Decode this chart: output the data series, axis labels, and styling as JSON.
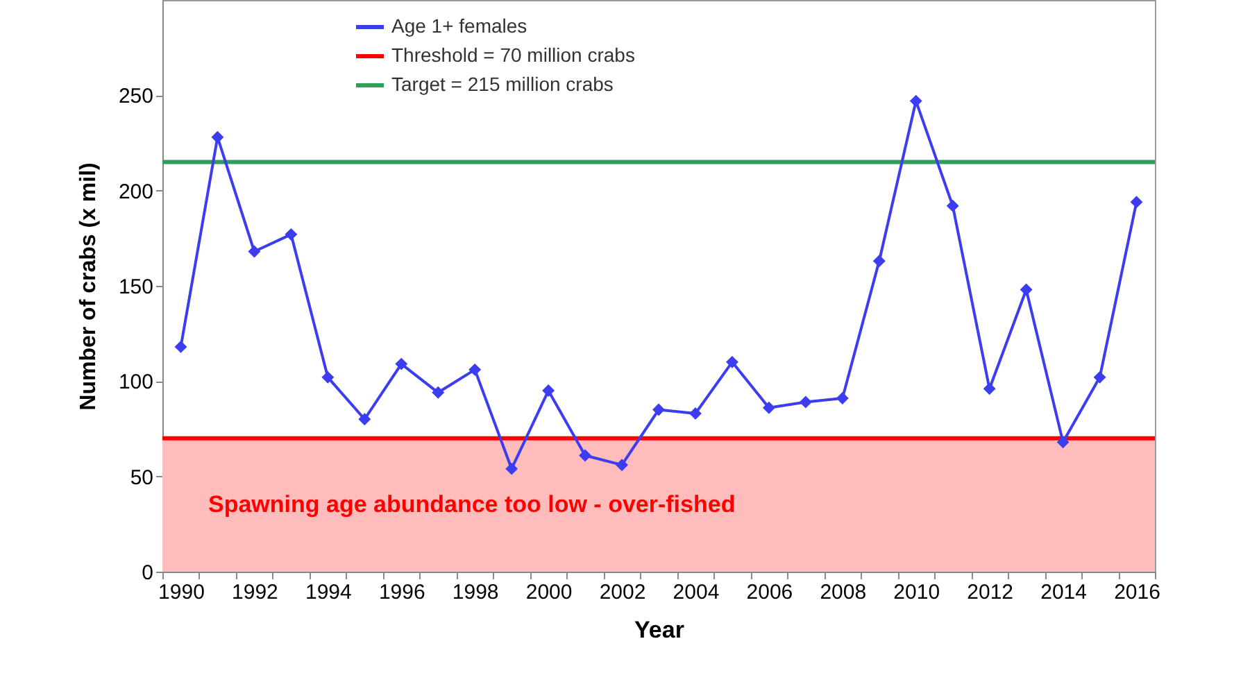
{
  "chart_data": {
    "type": "line",
    "xlabel": "Year",
    "ylabel": "Number of crabs (x mil)",
    "categories": [
      "1990",
      null,
      "1992",
      null,
      "1994",
      null,
      "1996",
      null,
      "1998",
      null,
      "2000",
      null,
      "2002",
      null,
      "2004",
      null,
      "2006",
      null,
      "2008",
      null,
      "2010",
      null,
      "2012",
      null,
      "2014",
      null,
      "2016"
    ],
    "series": [
      {
        "name": "Age 1+ females",
        "color": "#3c3cf0",
        "values": [
          118,
          228,
          168,
          177,
          102,
          80,
          109,
          94,
          106,
          54,
          95,
          61,
          56,
          85,
          83,
          110,
          86,
          89,
          91,
          163,
          247,
          192,
          96,
          148,
          68,
          102,
          194
        ]
      }
    ],
    "marker": "diamond",
    "ylim": [
      0,
      300
    ],
    "yticks": [
      0,
      50,
      100,
      150,
      200,
      250
    ],
    "grid": false,
    "legend": "top",
    "ref_lines": [
      {
        "axis": "y",
        "value": 70,
        "label": "Threshold = 70 million crabs",
        "color": "#ff0000"
      },
      {
        "axis": "y",
        "value": 215,
        "label": "Target = 215 million crabs",
        "color": "#2e9e5b"
      }
    ],
    "bands": [
      {
        "axis": "y",
        "from": 0,
        "to": 70,
        "label": "Spawning age abundance too low - over-fished",
        "color": "#ffbcbc"
      }
    ]
  }
}
